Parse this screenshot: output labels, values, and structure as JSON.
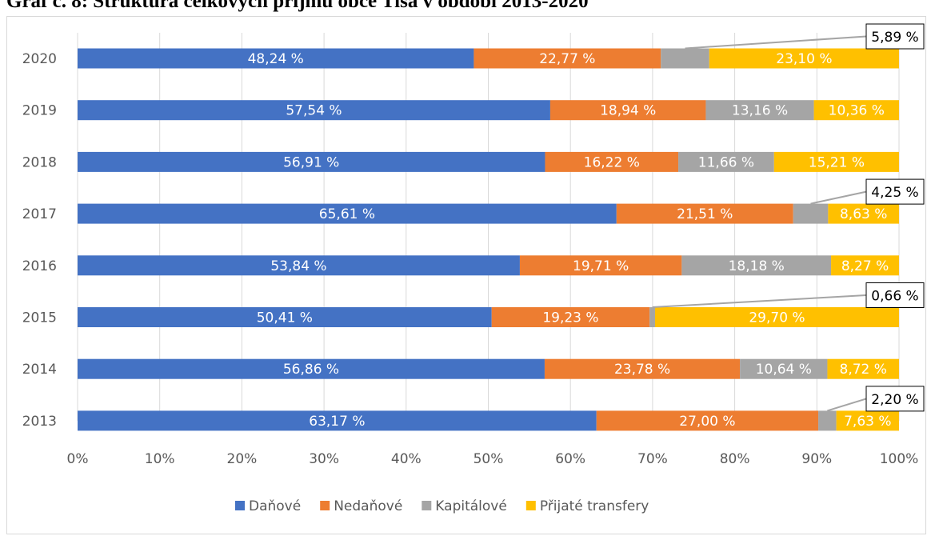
{
  "title": "Graf č. 8: Struktura celkových příjmů obce Tisá v období 2013-2020",
  "chart_data": {
    "type": "bar",
    "orientation": "horizontal",
    "stacked": "percent",
    "categories": [
      "2020",
      "2019",
      "2018",
      "2017",
      "2016",
      "2015",
      "2014",
      "2013"
    ],
    "series": [
      {
        "name": "Daňové",
        "color": "#4472c4",
        "values": [
          48.24,
          57.54,
          56.91,
          65.61,
          53.84,
          50.41,
          56.86,
          63.17
        ],
        "labels": [
          "48,24 %",
          "57,54 %",
          "56,91 %",
          "65,61 %",
          "53,84 %",
          "50,41 %",
          "56,86 %",
          "63,17 %"
        ]
      },
      {
        "name": "Nedaňové",
        "color": "#ed7d31",
        "values": [
          22.77,
          18.94,
          16.22,
          21.51,
          19.71,
          19.23,
          23.78,
          27.0
        ],
        "labels": [
          "22,77 %",
          "18,94 %",
          "16,22 %",
          "21,51 %",
          "19,71 %",
          "19,23 %",
          "23,78 %",
          "27,00 %"
        ]
      },
      {
        "name": "Kapitálové",
        "color": "#a5a5a5",
        "values": [
          5.89,
          13.16,
          11.66,
          4.25,
          18.18,
          0.66,
          10.64,
          2.2
        ],
        "labels": [
          "5,89 %",
          "13,16 %",
          "11,66 %",
          "4,25 %",
          "18,18 %",
          "0,66 %",
          "10,64 %",
          "2,20 %"
        ]
      },
      {
        "name": "Přijaté transfery",
        "color": "#ffc000",
        "values": [
          23.1,
          10.36,
          15.21,
          8.63,
          8.27,
          29.7,
          8.72,
          7.63
        ],
        "labels": [
          "23,10 %",
          "10,36 %",
          "15,21 %",
          "8,63 %",
          "8,27 %",
          "29,70 %",
          "8,72 %",
          "7,63 %"
        ]
      }
    ],
    "callouts": [
      {
        "category": "2020",
        "series": "Kapitálové"
      },
      {
        "category": "2017",
        "series": "Kapitálové"
      },
      {
        "category": "2015",
        "series": "Kapitálové"
      },
      {
        "category": "2013",
        "series": "Kapitálové"
      }
    ],
    "xticks": [
      "0%",
      "10%",
      "20%",
      "30%",
      "40%",
      "50%",
      "60%",
      "70%",
      "80%",
      "90%",
      "100%"
    ],
    "xlim": [
      0,
      100
    ],
    "grid": true,
    "legend": "bottom"
  }
}
